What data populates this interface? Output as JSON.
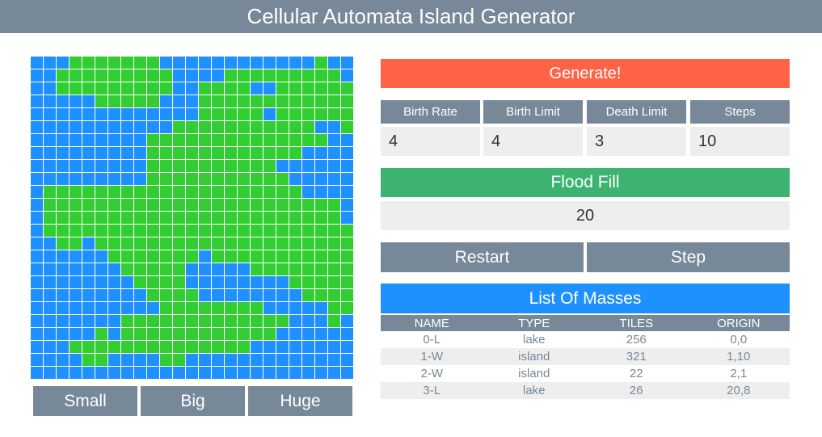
{
  "app": {
    "title": "Cellular Automata Island Generator"
  },
  "colors": {
    "land": "#32cd32",
    "water": "#1e90ff",
    "header": "#778899",
    "generate": "#ff6347",
    "flood": "#3cb371",
    "masses": "#1e90ff"
  },
  "map": {
    "rows": [
      "WWWLLLLLLLWWWWWWWWWWWWLWW",
      "WWLLLLLLLLLWWWWLLLLLLLLLW",
      "WWLLLLLLLLLWWLLLLWWLLLLLL",
      "WWWWWLLLLLWWWLLLLLLLLLLLL",
      "WWWWWWWWWWWWWLLLLLWLLLLLL",
      "WWWWWWWWWWWLLLLLLLLLLLWWL",
      "WWWWWWWWWLLLLLLLLLLLLLLWW",
      "WWWWWWWWWLLLLLLLLLLLLWWWW",
      "WWWWWWWWWLLLLLLLLLLWWWWWW",
      "WWWWWWWWWLLLLLLLLLLLWWWWW",
      "WLLLLLLLLLLLLLLLLLLLLWWWW",
      "WLLLLLLLLLLLLLLLLLLLLLLLW",
      "WLLLLLLLLLLLLLLLLLLLLLLLW",
      "WLLLLLLLLLLLLLLLLLLLLLLLL",
      "WWLLWLLLLLLLLLLLLLLLLLLLL",
      "WWWWWWLLLLLLLWLLLLLLLLLLL",
      "WWWWWWWLLLLLWWWWWLLLLLLLL",
      "WWWWWWWWLLLLWWWWWWWWLLLLL",
      "WWWWWWWWWLLLLWWWWWWWWLLLL",
      "WWWWWWWWWWLLLLLLLLWWWWWLL",
      "WWWWWWWLLLLLLLLLLLLLWWWLW",
      "WWWWWLWLLLLLLLLLLLLWWWWWW",
      "WWWLLLLLLLLLLLLLLWWWWWWWW",
      "WWWWLLWWWWLLWWWWWWWWWWWWW",
      "WWWWWWWWWWWWWWWWWWWWWWWWW"
    ]
  },
  "size_buttons": [
    "Small",
    "Big",
    "Huge"
  ],
  "generate": {
    "label": "Generate!"
  },
  "params": [
    {
      "label": "Birth Rate",
      "value": "4"
    },
    {
      "label": "Birth Limit",
      "value": "4"
    },
    {
      "label": "Death Limit",
      "value": "3"
    },
    {
      "label": "Steps",
      "value": "10"
    }
  ],
  "flood_fill": {
    "label": "Flood Fill",
    "value": "20"
  },
  "actions": {
    "restart": "Restart",
    "step": "Step"
  },
  "masses": {
    "title": "List Of Masses",
    "headers": [
      "NAME",
      "TYPE",
      "TILES",
      "ORIGIN"
    ],
    "rows": [
      [
        "0-L",
        "lake",
        "256",
        "0,0"
      ],
      [
        "1-W",
        "island",
        "321",
        "1,10"
      ],
      [
        "2-W",
        "island",
        "22",
        "2,1"
      ],
      [
        "3-L",
        "lake",
        "26",
        "20,8"
      ]
    ]
  }
}
